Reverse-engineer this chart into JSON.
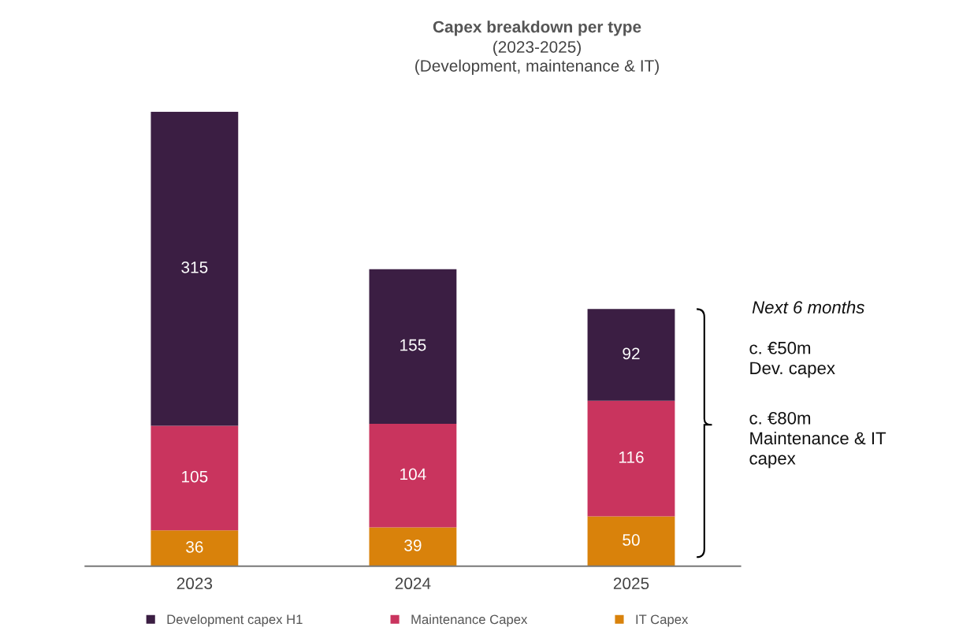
{
  "chart_data": {
    "type": "bar",
    "title": "Capex breakdown per type",
    "subtitle": "(2023-2025)\n(Development, maintenance & IT)",
    "categories": [
      "2023",
      "2024",
      "2025"
    ],
    "stacked": true,
    "data_labels": true,
    "legend": "bottom",
    "grid": false,
    "series": [
      {
        "name": "IT Capex",
        "color": "#d9820b",
        "values": [
          36,
          39,
          50
        ]
      },
      {
        "name": "Maintenance Capex",
        "color": "#c9345e",
        "values": [
          105,
          104,
          116
        ]
      },
      {
        "name": "Development capex H1",
        "color": "#3b1e43",
        "values": [
          315,
          155,
          92
        ]
      }
    ],
    "annotations": [
      "Next 6 months",
      "c. €50m\nDev. capex",
      "c. €80m\nMaintenance & IT\ncapex"
    ]
  }
}
